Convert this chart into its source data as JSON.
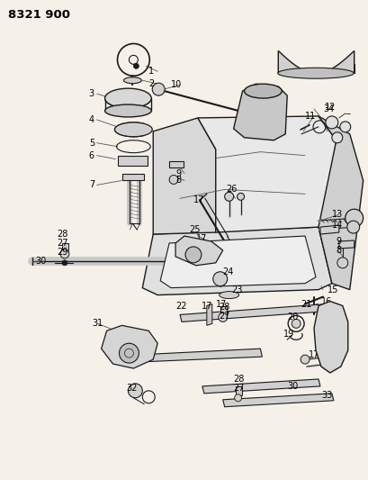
{
  "title": "8321 900",
  "bg_color": "#f5f0e8",
  "fig_width": 4.1,
  "fig_height": 5.33,
  "dpi": 100
}
